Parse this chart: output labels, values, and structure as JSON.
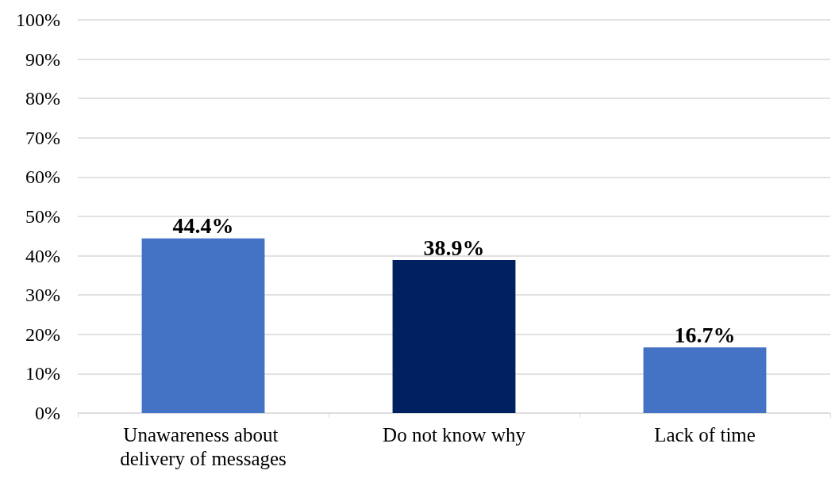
{
  "chart_data": {
    "type": "bar",
    "categories": [
      "Unawareness about delivery of messages",
      "Do not know why",
      "Lack of time"
    ],
    "values": [
      44.4,
      38.9,
      16.7
    ],
    "colors": [
      "#4472c4",
      "#002060",
      "#4472c4"
    ],
    "value_labels": [
      "44.4%",
      "38.9%",
      "16.7%"
    ],
    "ylim": [
      0,
      100
    ],
    "yticks": [
      {
        "value": 0,
        "label": "0%"
      },
      {
        "value": 10,
        "label": "10%"
      },
      {
        "value": 20,
        "label": "20%"
      },
      {
        "value": 30,
        "label": "30%"
      },
      {
        "value": 40,
        "label": "40%"
      },
      {
        "value": 50,
        "label": "50%"
      },
      {
        "value": 60,
        "label": "60%"
      },
      {
        "value": 70,
        "label": "70%"
      },
      {
        "value": 80,
        "label": "80%"
      },
      {
        "value": 90,
        "label": "90%"
      },
      {
        "value": 100,
        "label": "100%"
      }
    ],
    "grid": "y"
  }
}
